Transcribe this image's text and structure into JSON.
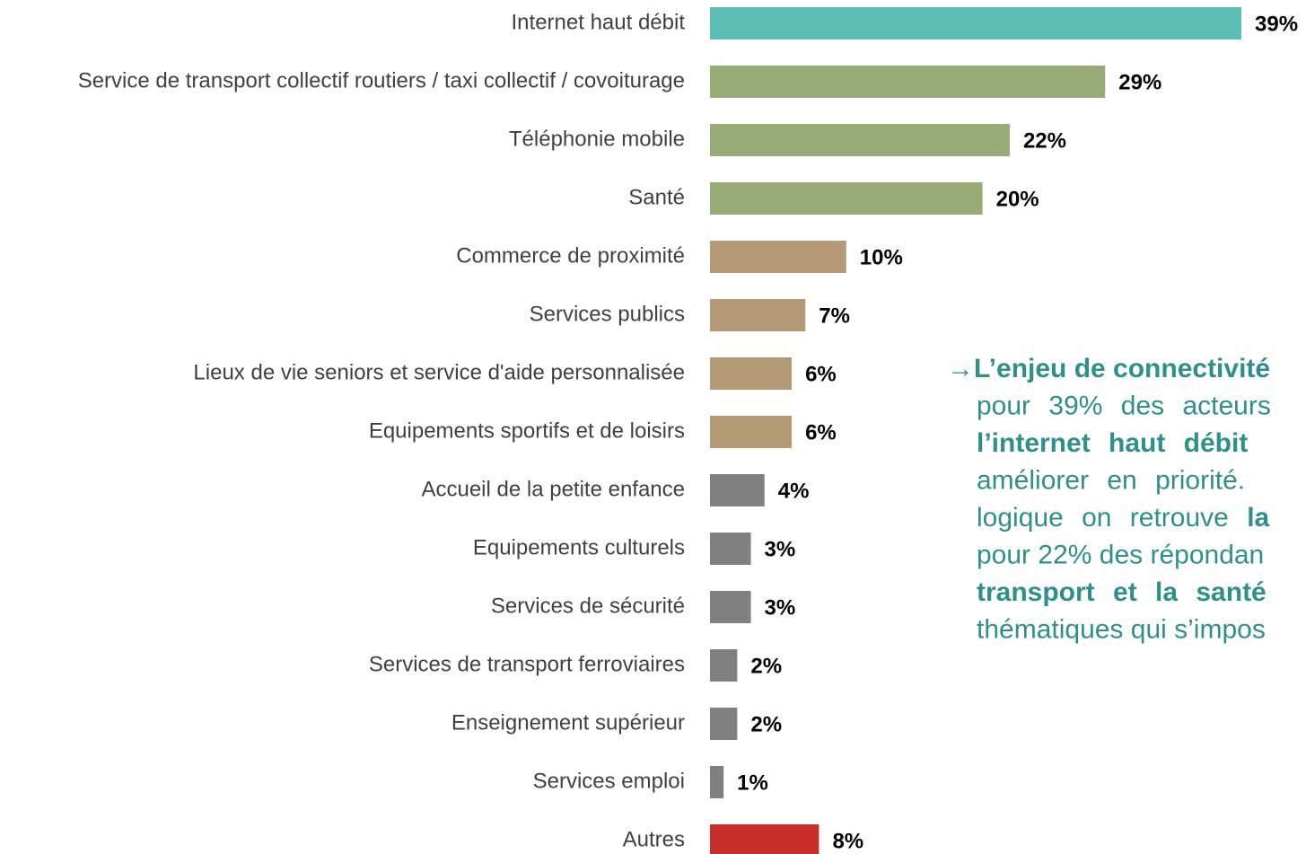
{
  "chart_data": {
    "type": "barh",
    "categories": [
      "Internet haut débit",
      "Service de transport collectif routiers / taxi collectif / covoiturage",
      "Téléphonie mobile",
      "Santé",
      "Commerce de proximité",
      "Services publics",
      "Lieux de vie seniors et service d'aide personnalisée",
      "Equipements sportifs et de loisirs",
      "Accueil de la petite enfance",
      "Equipements culturels",
      "Services de sécurité",
      "Services de transport ferroviaires",
      "Enseignement supérieur",
      "Services emploi",
      "Autres"
    ],
    "values": [
      39,
      29,
      22,
      20,
      10,
      7,
      6,
      6,
      4,
      3,
      3,
      2,
      2,
      1,
      8
    ],
    "value_labels": [
      "39%",
      "29%",
      "22%",
      "20%",
      "10%",
      "7%",
      "6%",
      "6%",
      "4%",
      "3%",
      "3%",
      "2%",
      "2%",
      "1%",
      "8%"
    ],
    "colors": [
      "#5cbdb5",
      "#97ab76",
      "#97ab76",
      "#97ab76",
      "#b59a78",
      "#b59a78",
      "#b59a78",
      "#b59a78",
      "#808080",
      "#808080",
      "#808080",
      "#808080",
      "#808080",
      "#808080",
      "#c9302c"
    ],
    "annotation": {
      "lines": [
        [
          {
            "text": "→",
            "bold": false
          },
          {
            "text": "L’enjeu de connectivité",
            "bold": true
          }
        ],
        [
          {
            "text": "pour 39% des acteurs",
            "bold": false
          }
        ],
        [
          {
            "text": "l’internet haut débit",
            "bold": true
          }
        ],
        [
          {
            "text": "améliorer en priorité.",
            "bold": false
          }
        ],
        [
          {
            "text": "logique on retrouve ",
            "bold": false
          },
          {
            "text": "la",
            "bold": true
          }
        ],
        [
          {
            "text": "pour 22% des répondan",
            "bold": false
          }
        ],
        [
          {
            "text": "transport et la santé",
            "bold": true
          }
        ],
        [
          {
            "text": "thématiques qui s’impos",
            "bold": false
          }
        ]
      ]
    }
  }
}
